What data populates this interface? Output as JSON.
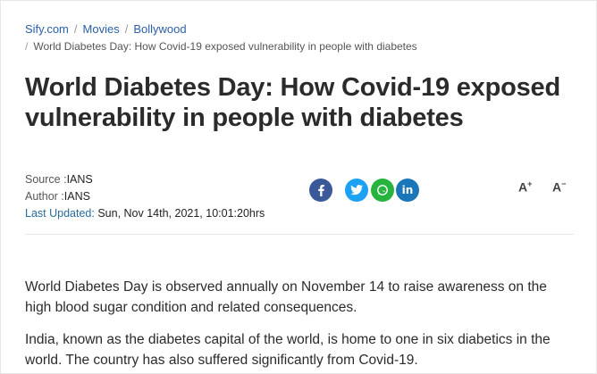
{
  "breadcrumb": {
    "items": [
      "Sify.com",
      "Movies",
      "Bollywood"
    ],
    "separator": "/",
    "current": "World Diabetes Day: How Covid-19 exposed vulnerability in people with diabetes"
  },
  "article": {
    "title": "World Diabetes Day: How Covid-19 exposed vulnerability in people with diabetes",
    "source_label": "Source :",
    "source_value": "IANS",
    "author_label": "Author :",
    "author_value": "IANS",
    "updated_label": "Last Updated:",
    "updated_value": "Sun, Nov 14th, 2021, 10:01:20hrs",
    "paragraphs": [
      "World Diabetes Day is observed annually on November 14 to raise awareness on the high blood sugar condition and related consequences.",
      "India, known as the diabetes capital of the world, is home to one in six diabetics in the world. The country has also suffered significantly from Covid-19."
    ]
  },
  "share": {
    "icons": [
      "facebook-icon",
      "twitter-icon",
      "whatsapp-icon",
      "linkedin-icon"
    ],
    "linkedin_text": "in",
    "colors": {
      "facebook": "#3b5998",
      "twitter": "#1da1f2",
      "whatsapp": "#27b43e",
      "linkedin": "#1b75b9"
    }
  },
  "font_controls": {
    "increase_letter": "A",
    "increase_symbol": "+",
    "decrease_letter": "A",
    "decrease_symbol": "−"
  },
  "colors": {
    "link": "#2a5fa8",
    "text": "#2b2b2b"
  }
}
